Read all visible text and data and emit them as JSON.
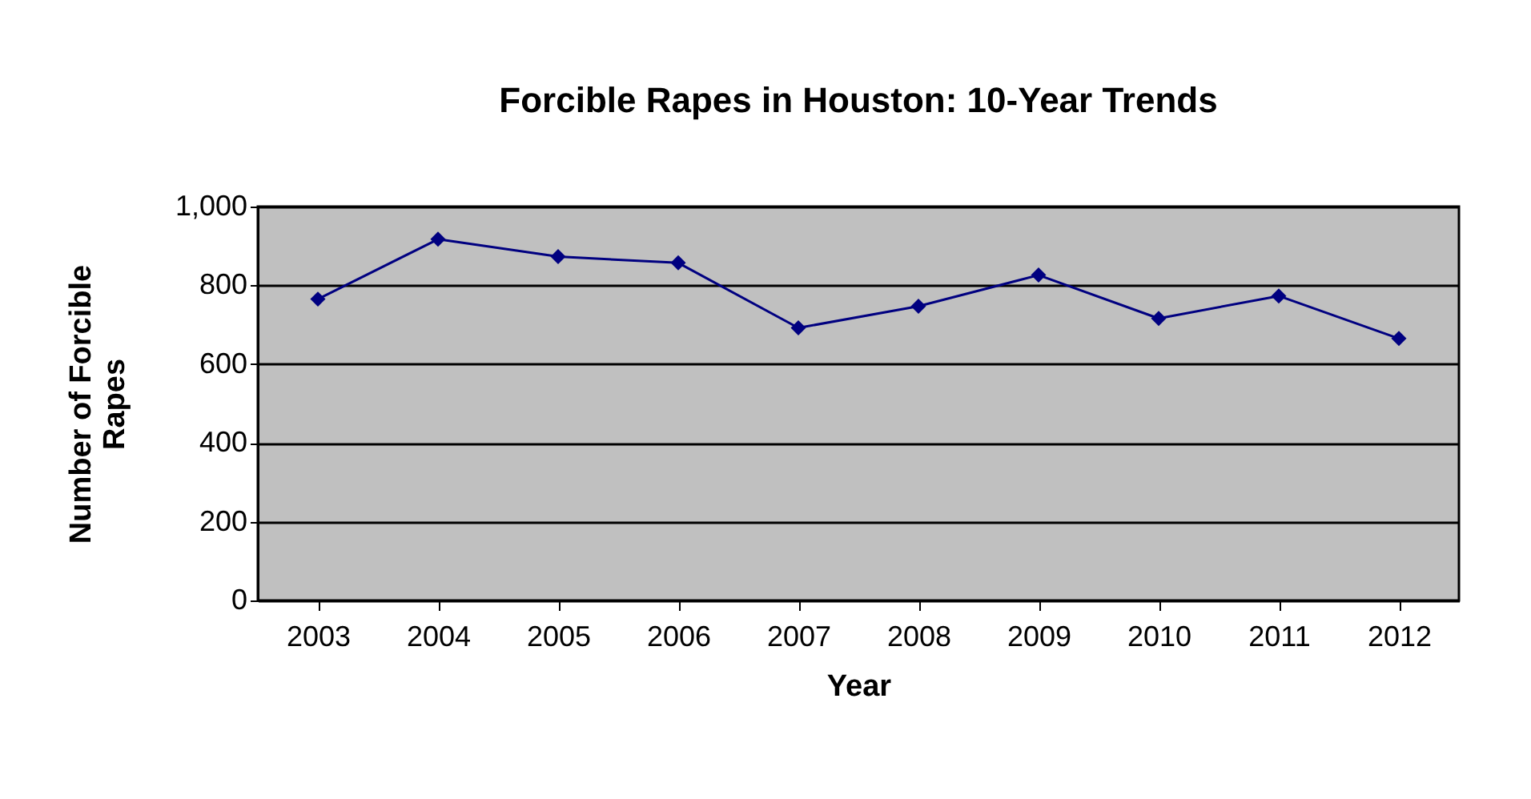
{
  "chart_data": {
    "type": "line",
    "title": "Forcible Rapes in Houston: 10-Year Trends",
    "xlabel": "Year",
    "ylabel": "Number of Forcible Rapes",
    "categories": [
      "2003",
      "2004",
      "2005",
      "2006",
      "2007",
      "2008",
      "2009",
      "2010",
      "2011",
      "2012"
    ],
    "series": [
      {
        "color": "#000080",
        "values": [
          765,
          917,
          873,
          857,
          692,
          747,
          826,
          716,
          773,
          665
        ]
      }
    ],
    "ylim": [
      0,
      1000
    ],
    "yticks": [
      0,
      200,
      400,
      600,
      800,
      {
        "value": 1000,
        "label": "1,000"
      }
    ],
    "grid": "y",
    "marker": "diamond",
    "line_style": "solid"
  }
}
